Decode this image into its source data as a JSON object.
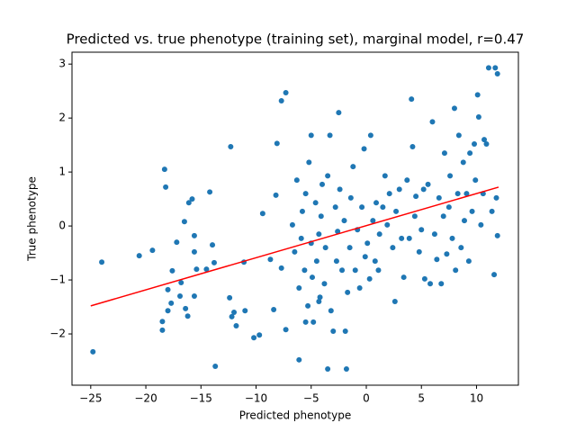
{
  "chart_data": {
    "type": "scatter",
    "title": "Predicted vs. true phenotype (training set), marginal model, r=0.47",
    "x_label": "Predicted phenotype",
    "y_label": "True phenotype",
    "xlim": [
      -26.7,
      13.8
    ],
    "ylim": [
      -2.95,
      3.22
    ],
    "xticks": [
      {
        "value": -25,
        "label": "−25"
      },
      {
        "value": -20,
        "label": "−20"
      },
      {
        "value": -15,
        "label": "−15"
      },
      {
        "value": -10,
        "label": "−10"
      },
      {
        "value": -5,
        "label": "−5"
      },
      0,
      5,
      10
    ],
    "yticks": [
      {
        "value": -2,
        "label": "−2"
      },
      {
        "value": -1,
        "label": "−1"
      },
      0,
      1,
      2,
      3
    ],
    "series": [
      {
        "color": "#1f77b4",
        "x": [
          -24.8,
          -24,
          -20.6,
          -19.4,
          -18.3,
          -18.2,
          -18.5,
          -18.5,
          -18,
          -18,
          -17.6,
          -17.2,
          -17.7,
          -16.9,
          -16.8,
          -16.5,
          -16.4,
          -16.1,
          -16.2,
          -15.8,
          -15.6,
          -15.6,
          -15.6,
          -15.4,
          -14.5,
          -14.2,
          -13.96,
          -13.8,
          -13.7,
          -12.4,
          -12.3,
          -12.2,
          -12,
          -11.8,
          -11.1,
          -11,
          -10.2,
          -9.7,
          -9.4,
          -8.7,
          -8.4,
          -8.2,
          -8.1,
          -7.7,
          -7.7,
          -7.3,
          -7.3,
          -6.7,
          -6.5,
          -6.3,
          -6.1,
          -5.9,
          -5.8,
          -5.6,
          -5.5,
          -5.3,
          -5.2,
          -5.0,
          -5.0,
          -4.9,
          -4.8,
          -4.6,
          -4.5,
          -4.3,
          -4.2,
          -4.1,
          -4.0,
          -3.8,
          -3.7,
          -3.5,
          -3.3,
          -3.2,
          -3.0,
          -2.8,
          -2.7,
          -2.6,
          -2.5,
          -2.4,
          -2.2,
          -2.0,
          -1.9,
          -1.7,
          -1.5,
          -1.4,
          -1.2,
          -1.0,
          -0.8,
          -0.6,
          -0.4,
          -0.2,
          -0.1,
          0.1,
          0.3,
          0.4,
          0.6,
          0.8,
          0.9,
          1.1,
          1.2,
          1.5,
          1.7,
          1.9,
          2.1,
          2.4,
          2.6,
          2.7,
          3.0,
          3.2,
          3.4,
          3.7,
          3.9,
          4.1,
          4.2,
          4.4,
          4.5,
          4.8,
          5.0,
          5.2,
          5.3,
          5.6,
          5.8,
          6.0,
          6.2,
          6.4,
          6.6,
          6.8,
          7.0,
          7.1,
          7.3,
          7.5,
          7.6,
          7.8,
          8.0,
          8.1,
          8.3,
          8.4,
          8.6,
          8.8,
          8.9,
          9.1,
          9.3,
          9.4,
          9.6,
          9.8,
          9.9,
          10.1,
          10.2,
          10.4,
          10.6,
          10.7,
          10.9,
          11.1,
          11.4,
          11.6,
          11.7,
          11.9,
          11.8,
          11.9,
          -1.8,
          -3.5,
          -5.5,
          -6.1,
          -4.3
        ],
        "values": [
          -2.33,
          -0.67,
          -0.55,
          -0.45,
          1.05,
          0.72,
          -1.77,
          -1.93,
          -1.57,
          -1.18,
          -0.83,
          -0.3,
          -1.43,
          -1.3,
          -1.05,
          0.08,
          -1.53,
          0.43,
          -1.67,
          0.5,
          -0.18,
          -1.3,
          -0.48,
          -0.8,
          -0.8,
          0.63,
          -0.35,
          -0.68,
          -2.6,
          -1.33,
          1.47,
          -1.68,
          -1.6,
          -1.85,
          -0.67,
          -1.57,
          -2.07,
          -2.02,
          0.23,
          -0.62,
          -1.55,
          0.57,
          1.53,
          -0.78,
          2.32,
          2.47,
          -1.92,
          0.02,
          -0.48,
          0.85,
          -1.15,
          -0.23,
          0.27,
          -0.82,
          0.6,
          -1.48,
          1.18,
          -0.32,
          1.68,
          -0.95,
          -1.78,
          0.43,
          -0.65,
          -0.15,
          -1.32,
          0.18,
          0.77,
          -1.07,
          -0.4,
          0.93,
          1.68,
          -1.57,
          -1.95,
          0.35,
          -0.65,
          -0.1,
          2.1,
          0.68,
          -0.82,
          0.1,
          -1.95,
          -1.23,
          -0.4,
          0.52,
          1.1,
          -0.82,
          -0.07,
          -1.15,
          0.35,
          1.43,
          -0.57,
          -0.32,
          -0.98,
          1.68,
          0.1,
          -0.65,
          0.43,
          -0.82,
          -0.15,
          0.35,
          0.93,
          0.02,
          0.6,
          -0.4,
          -1.4,
          0.27,
          0.68,
          -0.23,
          -0.95,
          0.85,
          -0.23,
          2.35,
          1.47,
          0.18,
          0.55,
          -0.48,
          -0.07,
          0.68,
          -0.98,
          0.77,
          -1.07,
          1.93,
          -0.15,
          -0.62,
          0.52,
          -1.07,
          0.18,
          1.35,
          -0.52,
          0.35,
          0.93,
          -0.23,
          2.18,
          -0.82,
          0.6,
          1.68,
          -0.4,
          1.18,
          0.1,
          0.6,
          -0.65,
          1.35,
          0.27,
          1.52,
          0.85,
          2.43,
          2.02,
          0.02,
          0.6,
          1.6,
          1.52,
          2.93,
          0.27,
          -0.9,
          2.93,
          2.82,
          0.52,
          -0.18,
          -2.65,
          -2.65,
          -1.78,
          -2.48,
          -1.4
        ]
      }
    ],
    "fit_line": {
      "x": [
        -25,
        12
      ],
      "values": [
        -1.48,
        0.72
      ],
      "color": "#ff0000"
    }
  }
}
